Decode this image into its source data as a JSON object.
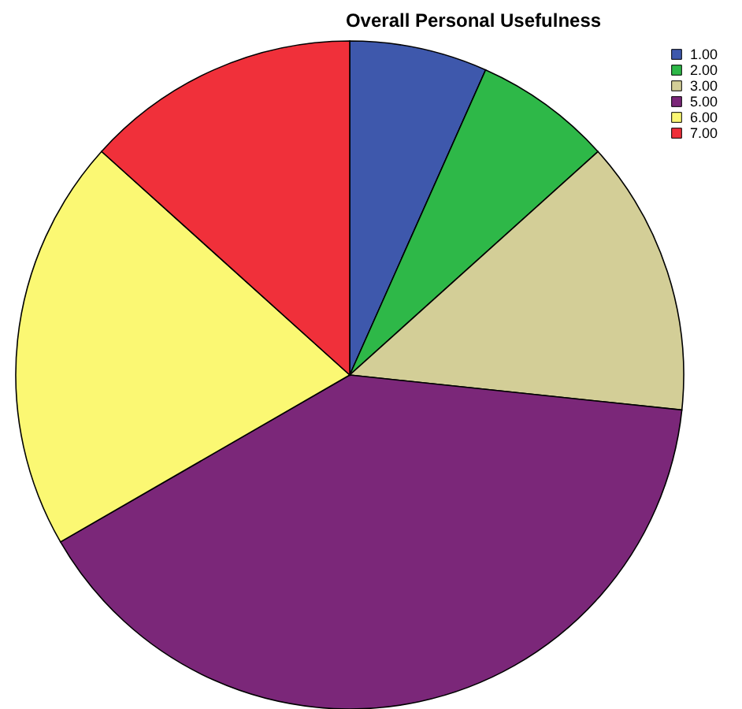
{
  "chart_data": {
    "type": "pie",
    "title": "Overall Personal Usefulness",
    "categories": [
      "1.00",
      "2.00",
      "3.00",
      "5.00",
      "6.00",
      "7.00"
    ],
    "values": [
      6.67,
      6.67,
      13.33,
      40,
      20,
      13.33
    ],
    "colors": [
      "#3e58ac",
      "#2eb848",
      "#d3ce97",
      "#7b2779",
      "#fbf873",
      "#f0303a"
    ],
    "legend": "top right"
  }
}
